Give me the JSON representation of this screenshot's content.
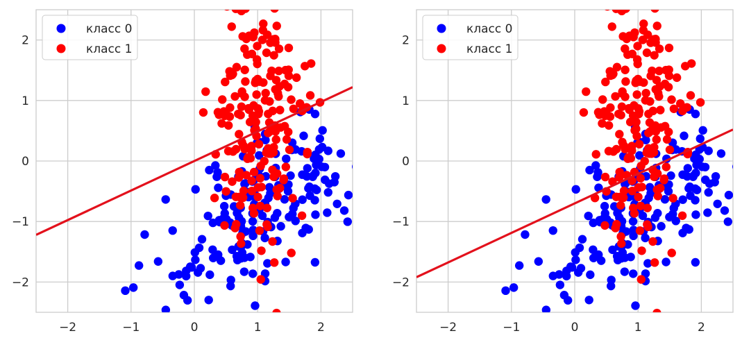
{
  "chart_data": [
    {
      "type": "scatter",
      "title": "",
      "xlabel": "",
      "ylabel": "",
      "xlim": [
        -2.5,
        2.5
      ],
      "ylim": [
        -2.5,
        2.5
      ],
      "xticks": [
        -2,
        -1,
        0,
        1,
        2
      ],
      "yticks": [
        -2,
        -1,
        0,
        1,
        2
      ],
      "x_tick_labels": [
        "−2",
        "−1",
        "0",
        "1",
        "2"
      ],
      "y_tick_labels": [
        "−2",
        "−1",
        "0",
        "1",
        "2"
      ],
      "grid": true,
      "legend": "upper left",
      "series": [
        {
          "name": "класс 0",
          "color": "#0000ff",
          "generator": "class0"
        },
        {
          "name": "класс 1",
          "color": "#ff0000",
          "generator": "class1"
        }
      ],
      "decision_line": {
        "x": [
          -2.5,
          2.5
        ],
        "y": [
          -1.22,
          1.22
        ],
        "color": "#e3111c"
      }
    },
    {
      "type": "scatter",
      "title": "",
      "xlabel": "",
      "ylabel": "",
      "xlim": [
        -2.5,
        2.5
      ],
      "ylim": [
        -2.5,
        2.5
      ],
      "xticks": [
        -2,
        -1,
        0,
        1,
        2
      ],
      "yticks": [
        -2,
        -1,
        0,
        1,
        2
      ],
      "x_tick_labels": [
        "−2",
        "−1",
        "0",
        "1",
        "2"
      ],
      "y_tick_labels": [
        "−2",
        "−1",
        "0",
        "1",
        "2"
      ],
      "grid": true,
      "legend": "upper left",
      "series": [
        {
          "name": "класс 0",
          "color": "#0000ff",
          "generator": "class0"
        },
        {
          "name": "класс 1",
          "color": "#ff0000",
          "generator": "class1"
        }
      ],
      "decision_line": {
        "x": [
          -2.5,
          2.5
        ],
        "y": [
          -1.92,
          0.52
        ],
        "color": "#e3111c"
      }
    }
  ]
}
